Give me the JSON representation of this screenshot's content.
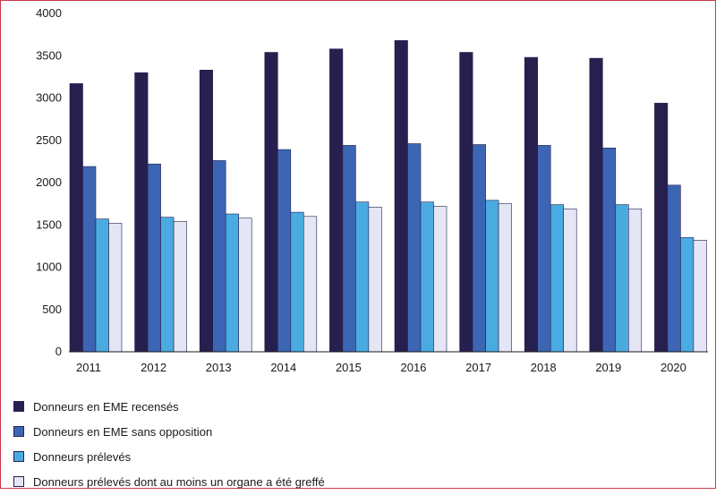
{
  "chart_data": {
    "type": "bar",
    "title": "",
    "xlabel": "",
    "ylabel": "",
    "ylim": [
      0,
      4000
    ],
    "yticks": [
      0,
      500,
      1000,
      1500,
      2000,
      2500,
      3000,
      3500,
      4000
    ],
    "grid": false,
    "legend_position": "bottom-left",
    "categories": [
      "2011",
      "2012",
      "2013",
      "2014",
      "2015",
      "2016",
      "2017",
      "2018",
      "2019",
      "2020"
    ],
    "series": [
      {
        "name": "Donneurs en EME recensés",
        "color": "#27204f",
        "values": [
          3170,
          3300,
          3330,
          3540,
          3580,
          3680,
          3540,
          3480,
          3470,
          2940
        ]
      },
      {
        "name": "Donneurs en EME sans opposition",
        "color": "#3c66b4",
        "values": [
          2190,
          2220,
          2260,
          2390,
          2440,
          2460,
          2450,
          2440,
          2410,
          1970
        ]
      },
      {
        "name": "Donneurs prélevés",
        "color": "#4aabe1",
        "values": [
          1570,
          1590,
          1630,
          1650,
          1770,
          1770,
          1790,
          1740,
          1740,
          1350
        ]
      },
      {
        "name": "Donneurs prélevés dont au moins un organe a été greffé",
        "color": "#e4e6f5",
        "values": [
          1520,
          1540,
          1580,
          1600,
          1710,
          1720,
          1750,
          1690,
          1690,
          1320
        ]
      }
    ]
  }
}
